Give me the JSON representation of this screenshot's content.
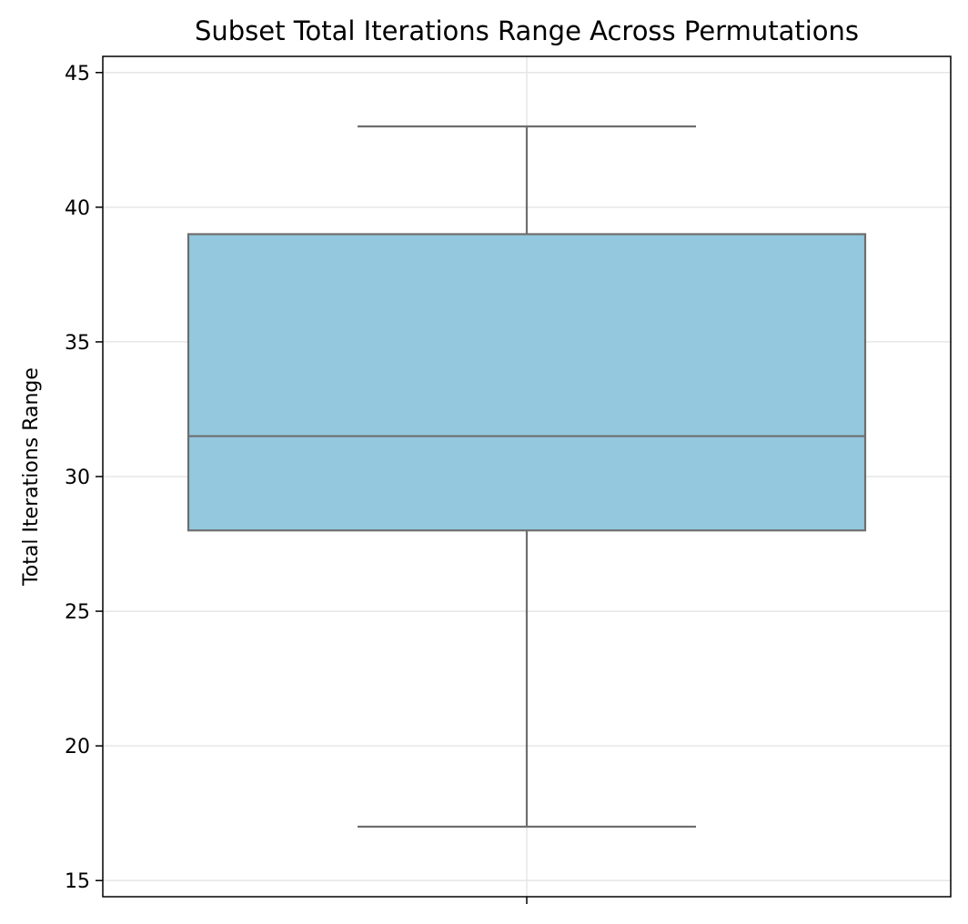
{
  "chart_data": {
    "type": "box",
    "title": "Subset Total Iterations Range Across Permutations",
    "xlabel": "",
    "ylabel": "Total Iterations Range",
    "ylim": [
      14.4,
      45.6
    ],
    "yticks": [
      15,
      20,
      25,
      30,
      35,
      40,
      45
    ],
    "grid": true,
    "box": {
      "min": 17,
      "q1": 28,
      "median": 31.5,
      "q3": 39,
      "max": 43
    },
    "colors": {
      "box_fill": "#93c8de",
      "box_edge": "#6e6e6e",
      "grid": "#e6e6e6"
    }
  }
}
